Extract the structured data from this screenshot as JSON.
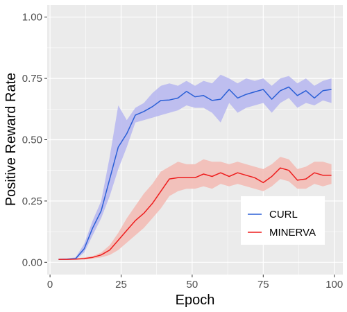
{
  "chart_data": {
    "type": "line",
    "xlabel": "Epoch",
    "ylabel": "Positive Reward Rate",
    "xlim": [
      -1,
      103
    ],
    "ylim": [
      -0.05,
      1.05
    ],
    "x_ticks": [
      0,
      25,
      50,
      75,
      100
    ],
    "x_tick_labels": [
      "0",
      "25",
      "50",
      "75",
      "100"
    ],
    "y_ticks": [
      0,
      0.25,
      0.5,
      0.75,
      1.0
    ],
    "y_tick_labels": [
      "0.00",
      "0.25",
      "0.50",
      "0.75",
      "1.00"
    ],
    "grid": true,
    "legend_position": "bottom-right",
    "x": [
      3,
      6,
      9,
      12,
      15,
      18,
      21,
      24,
      27,
      30,
      33,
      36,
      39,
      42,
      45,
      48,
      51,
      54,
      57,
      60,
      63,
      66,
      69,
      72,
      75,
      78,
      81,
      84,
      87,
      90,
      93,
      96,
      99
    ],
    "series": [
      {
        "name": "CURL",
        "color": "#2a5fd6",
        "band_color": "#b9b9ef",
        "values": [
          0.012,
          0.013,
          0.015,
          0.055,
          0.14,
          0.21,
          0.34,
          0.47,
          0.525,
          0.6,
          0.615,
          0.635,
          0.66,
          0.662,
          0.67,
          0.697,
          0.675,
          0.68,
          0.66,
          0.665,
          0.705,
          0.67,
          0.685,
          0.695,
          0.705,
          0.665,
          0.7,
          0.715,
          0.68,
          0.7,
          0.67,
          0.7,
          0.705
        ],
        "lower": [
          0.01,
          0.01,
          0.011,
          0.04,
          0.11,
          0.18,
          0.27,
          0.38,
          0.47,
          0.57,
          0.58,
          0.59,
          0.6,
          0.61,
          0.62,
          0.64,
          0.63,
          0.63,
          0.61,
          0.57,
          0.65,
          0.61,
          0.63,
          0.64,
          0.65,
          0.61,
          0.65,
          0.67,
          0.63,
          0.65,
          0.64,
          0.66,
          0.65
        ],
        "upper": [
          0.015,
          0.016,
          0.02,
          0.075,
          0.17,
          0.25,
          0.43,
          0.64,
          0.58,
          0.63,
          0.65,
          0.69,
          0.72,
          0.73,
          0.72,
          0.74,
          0.72,
          0.74,
          0.73,
          0.765,
          0.75,
          0.73,
          0.75,
          0.74,
          0.75,
          0.72,
          0.75,
          0.76,
          0.73,
          0.75,
          0.72,
          0.74,
          0.75
        ]
      },
      {
        "name": "MINERVA",
        "color": "#ee1c1c",
        "band_color": "#f3bcb6",
        "values": [
          0.012,
          0.012,
          0.013,
          0.015,
          0.02,
          0.03,
          0.05,
          0.09,
          0.13,
          0.17,
          0.2,
          0.24,
          0.29,
          0.34,
          0.345,
          0.345,
          0.345,
          0.36,
          0.35,
          0.365,
          0.35,
          0.365,
          0.355,
          0.345,
          0.325,
          0.35,
          0.385,
          0.375,
          0.335,
          0.34,
          0.365,
          0.355,
          0.355
        ],
        "lower": [
          0.01,
          0.01,
          0.011,
          0.012,
          0.015,
          0.02,
          0.03,
          0.05,
          0.08,
          0.11,
          0.14,
          0.18,
          0.22,
          0.27,
          0.29,
          0.3,
          0.3,
          0.31,
          0.3,
          0.32,
          0.31,
          0.32,
          0.31,
          0.3,
          0.29,
          0.31,
          0.34,
          0.33,
          0.3,
          0.3,
          0.32,
          0.31,
          0.32
        ],
        "upper": [
          0.015,
          0.015,
          0.016,
          0.02,
          0.025,
          0.04,
          0.07,
          0.12,
          0.18,
          0.23,
          0.28,
          0.32,
          0.37,
          0.39,
          0.41,
          0.4,
          0.4,
          0.42,
          0.41,
          0.41,
          0.4,
          0.41,
          0.4,
          0.39,
          0.38,
          0.4,
          0.43,
          0.42,
          0.38,
          0.39,
          0.41,
          0.41,
          0.4
        ]
      }
    ]
  },
  "colors": {
    "panel_background": "#ebebeb",
    "gridline": "#ffffff",
    "tick_mark": "#333333"
  }
}
